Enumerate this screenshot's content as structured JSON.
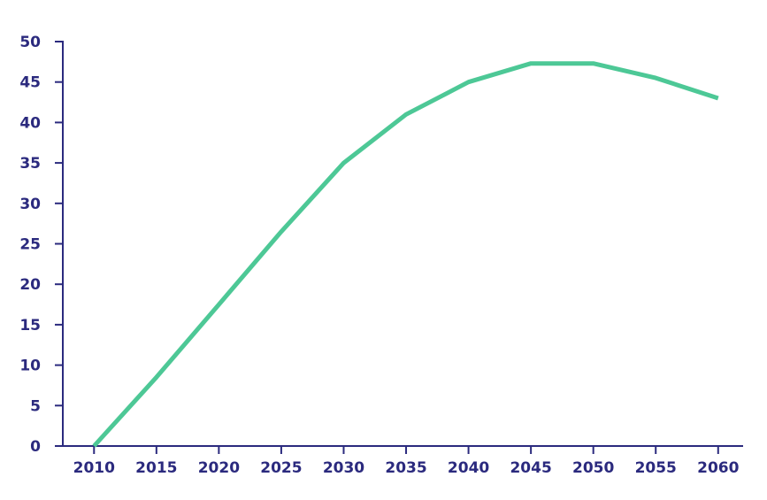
{
  "colors": {
    "axis": "#2b2a7e",
    "series": "#4dc896",
    "background": "#ffffff"
  },
  "chart_data": {
    "type": "line",
    "title": "",
    "xlabel": "",
    "ylabel": "",
    "grid": false,
    "legend": "none",
    "xlim": [
      2007.5,
      2062
    ],
    "ylim": [
      0,
      50
    ],
    "x_ticks": [
      "2010",
      "2015",
      "2020",
      "2025",
      "2030",
      "2035",
      "2040",
      "2045",
      "2050",
      "2055",
      "2060"
    ],
    "y_ticks": [
      "0",
      "5",
      "10",
      "15",
      "20",
      "25",
      "30",
      "35",
      "40",
      "45",
      "50"
    ],
    "x": [
      2010,
      2015,
      2020,
      2025,
      2030,
      2035,
      2040,
      2045,
      2050,
      2055,
      2060
    ],
    "series": [
      {
        "values": [
          0,
          8.5,
          17.5,
          26.5,
          35,
          41,
          45,
          47.3,
          47.3,
          45.5,
          43
        ]
      }
    ]
  }
}
